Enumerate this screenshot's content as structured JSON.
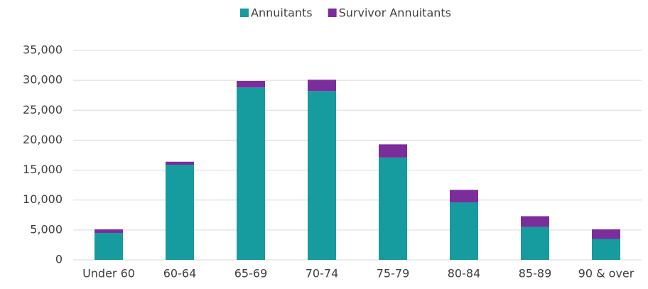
{
  "chart_data": {
    "type": "stacked_bar",
    "categories": [
      "Under 60",
      "60-64",
      "65-69",
      "70-74",
      "75-79",
      "80-84",
      "85-89",
      "90 & over"
    ],
    "series": [
      {
        "name": "Annuitants",
        "color": "#169b9e",
        "values": [
          4500,
          15900,
          28800,
          28200,
          17100,
          9600,
          5500,
          3500
        ]
      },
      {
        "name": "Survivor Annuitants",
        "color": "#7b2d9b",
        "values": [
          600,
          500,
          1100,
          1900,
          2200,
          2100,
          1800,
          1600
        ]
      }
    ],
    "ylim": [
      0,
      35000
    ],
    "yticks": [
      0,
      {
        "value": 5000,
        "label": "5,000"
      },
      {
        "value": 10000,
        "label": "10,000"
      },
      {
        "value": 15000,
        "label": "15,000"
      },
      {
        "value": 20000,
        "label": "20,000"
      },
      {
        "value": 25000,
        "label": "25,000"
      },
      {
        "value": 30000,
        "label": "30,000"
      },
      {
        "value": 35000,
        "label": "35,000"
      }
    ],
    "grid": true,
    "legend": "top"
  }
}
